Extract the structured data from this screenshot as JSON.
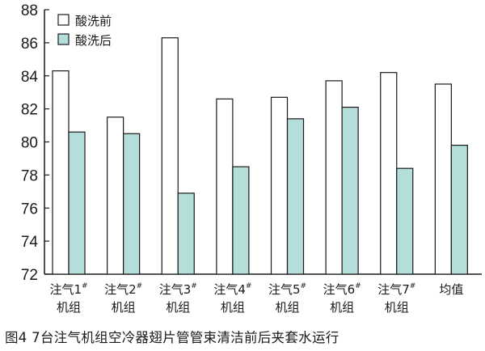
{
  "caption": "图4   7台注气机组空冷器翅片管管束清洁前后夹套水运行",
  "chart_data": {
    "type": "bar",
    "ylim": [
      72,
      88
    ],
    "yticks": [
      72,
      74,
      76,
      78,
      80,
      82,
      84,
      86,
      88
    ],
    "categories": [
      {
        "line1": "注气1",
        "sup": "#",
        "line2": "机组"
      },
      {
        "line1": "注气2",
        "sup": "#",
        "line2": "机组"
      },
      {
        "line1": "注气3",
        "sup": "#",
        "line2": "机组"
      },
      {
        "line1": "注气4",
        "sup": "#",
        "line2": "机组"
      },
      {
        "line1": "注气5",
        "sup": "#",
        "line2": "机组"
      },
      {
        "line1": "注气6",
        "sup": "#",
        "line2": "机组"
      },
      {
        "line1": "注气7",
        "sup": "#",
        "line2": "机组"
      },
      {
        "line1": "均值",
        "sup": "",
        "line2": ""
      }
    ],
    "series": [
      {
        "name": "酸洗前",
        "color": "#ffffff",
        "values": [
          84.3,
          81.5,
          86.3,
          82.6,
          82.7,
          83.7,
          84.2,
          83.5
        ]
      },
      {
        "name": "酸洗后",
        "color": "#b3ded9",
        "values": [
          80.6,
          80.5,
          76.9,
          78.5,
          81.4,
          82.1,
          78.4,
          79.8
        ]
      }
    ],
    "legend_position": "top-left",
    "grid": false
  }
}
